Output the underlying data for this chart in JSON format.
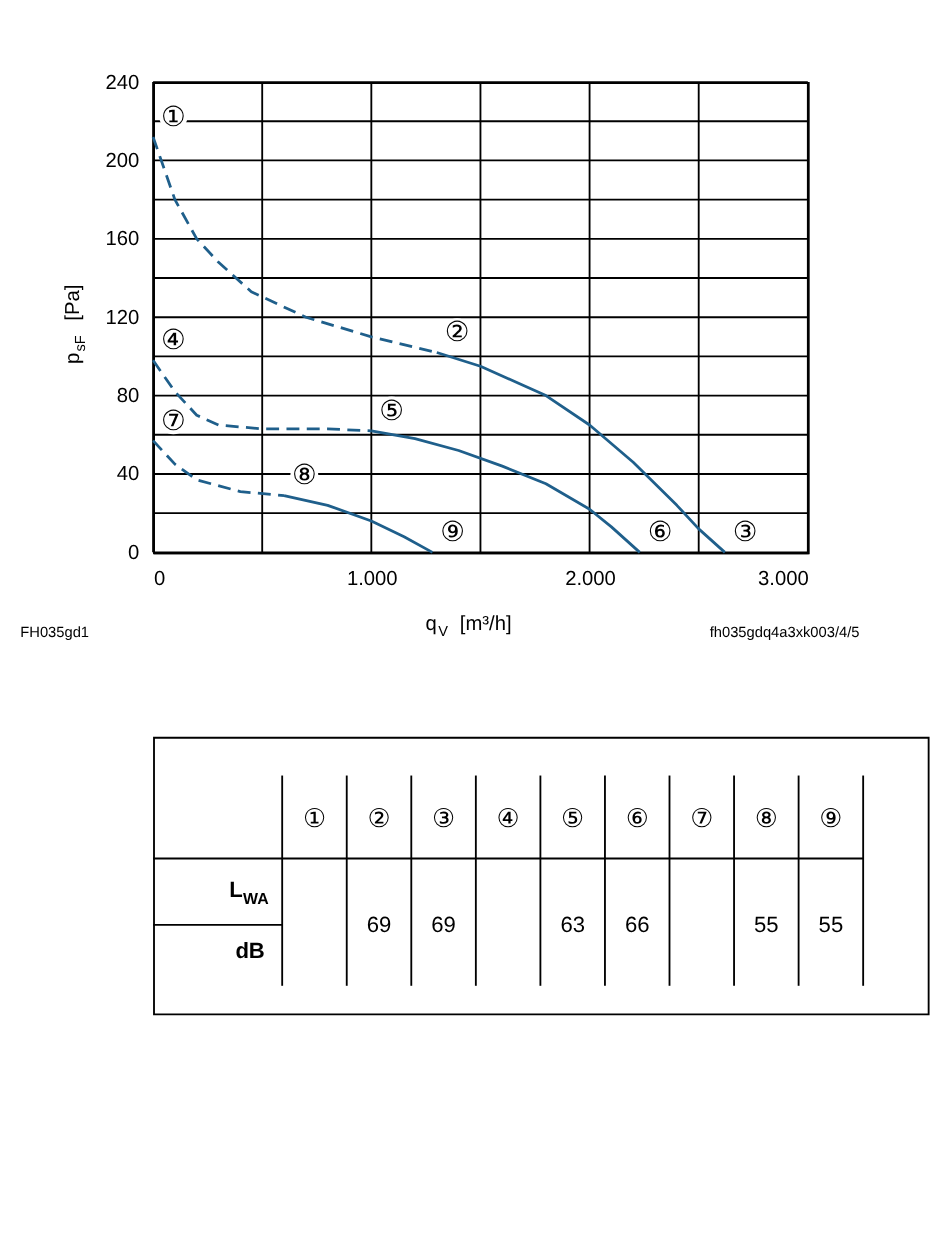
{
  "chart_data": [
    {
      "type": "line",
      "xlabel": "q$_{V}$ [m³/h]",
      "ylabel": "p$_{sF}$ [Pa]",
      "xlim": [
        0,
        3000
      ],
      "ylim": [
        0,
        240
      ],
      "xticks": [
        0,
        {
          "value": 500,
          "label": null
        },
        {
          "value": 1000,
          "label": "1.000"
        },
        {
          "value": 1500,
          "label": null
        },
        {
          "value": 2000,
          "label": "2.000"
        },
        {
          "value": 2500,
          "label": null
        },
        {
          "value": 3000,
          "label": "3.000"
        }
      ],
      "yticks": [
        0,
        {
          "value": 20,
          "label": null
        },
        40,
        {
          "value": 60,
          "label": null
        },
        80,
        {
          "value": 100,
          "label": null
        },
        120,
        {
          "value": 140,
          "label": null
        },
        160,
        {
          "value": 180,
          "label": null
        },
        200,
        {
          "value": 220,
          "label": null
        },
        240
      ],
      "grid": true,
      "marker": "none",
      "series": [
        {
          "color": "#1f5f8b",
          "line_style": "dashed",
          "x": [
            0,
            100,
            200,
            300,
            450,
            700,
            1000,
            1300
          ],
          "values": [
            212,
            180,
            160,
            148,
            133,
            120,
            110,
            102
          ]
        },
        {
          "color": "#1f5f8b",
          "line_style": "solid",
          "x": [
            1300,
            1500,
            1700,
            1800,
            2000,
            2200,
            2400,
            2500,
            2620
          ],
          "values": [
            102,
            95,
            85,
            80,
            65,
            46,
            24,
            12,
            0
          ]
        },
        {
          "color": "#1f5f8b",
          "line_style": "dashed",
          "x": [
            0,
            100,
            200,
            300,
            500,
            800,
            1000
          ],
          "values": [
            98,
            82,
            70,
            65,
            63,
            63,
            62
          ]
        },
        {
          "color": "#1f5f8b",
          "line_style": "solid",
          "x": [
            1000,
            1200,
            1400,
            1600,
            1800,
            2000,
            2100,
            2230
          ],
          "values": [
            62,
            58,
            52,
            44,
            35,
            22,
            13,
            0
          ]
        },
        {
          "color": "#1f5f8b",
          "line_style": "dashed",
          "x": [
            0,
            100,
            200,
            400,
            600
          ],
          "values": [
            57,
            45,
            37,
            31,
            29
          ]
        },
        {
          "color": "#1f5f8b",
          "line_style": "solid",
          "x": [
            600,
            800,
            1000,
            1150,
            1280
          ],
          "values": [
            29,
            24,
            16,
            8,
            0
          ]
        }
      ],
      "annotations": [
        {
          "text": "①",
          "x": 0,
          "y": 212
        },
        {
          "text": "②",
          "x": 1300,
          "y": 102
        },
        {
          "text": "③",
          "x": 2620,
          "y": 0
        },
        {
          "text": "④",
          "x": 0,
          "y": 98
        },
        {
          "text": "⑤",
          "x": 1000,
          "y": 62
        },
        {
          "text": "⑥",
          "x": 2230,
          "y": 0
        },
        {
          "text": "⑦",
          "x": 0,
          "y": 57
        },
        {
          "text": "⑧",
          "x": 600,
          "y": 29
        },
        {
          "text": "⑨",
          "x": 1280,
          "y": 0
        },
        "FH035gd1",
        "fh035gdq4a3xk003/4/5"
      ]
    },
    {
      "type": "other",
      "categories": [
        "①",
        "②",
        "③",
        "④",
        "⑤",
        "⑥",
        "⑦",
        "⑧",
        "⑨"
      ],
      "values": [
        null,
        69,
        69,
        null,
        63,
        66,
        null,
        55,
        55
      ],
      "data_labels": true,
      "annotations": [
        "L$_{WA}$",
        "dB"
      ]
    }
  ]
}
